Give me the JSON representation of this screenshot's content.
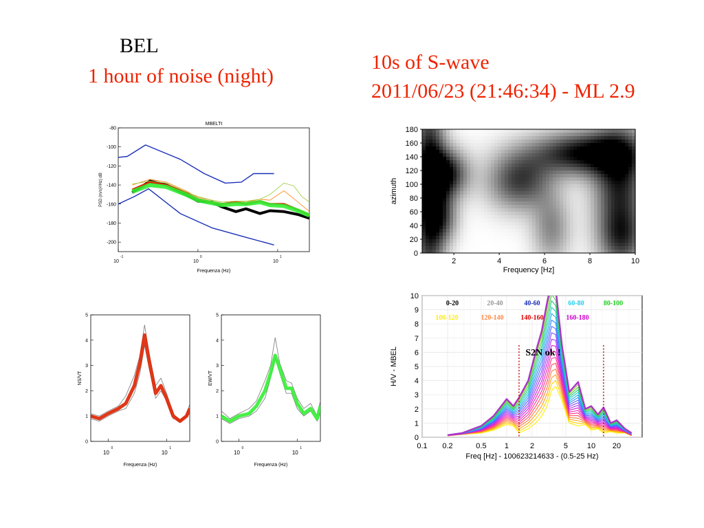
{
  "titles": {
    "station": "BEL",
    "noise": "1 hour of noise (night)",
    "swave": "10s of S-wave",
    "event": "2011/06/23 (21:46:34) - ML 2.9",
    "note": "S2N ok !"
  },
  "colors": {
    "red_title": "#ee2200",
    "black": "#000000",
    "blue": "#1a2fb8",
    "green": "#33ee33",
    "red": "#dd2200",
    "grey": "#777777",
    "dotted": "#cc0000"
  },
  "chart_data": [
    {
      "id": "psd",
      "type": "line",
      "title": "MBELTt",
      "xlabel": "Frequenza (Hz)",
      "ylabel": "PSD (m/s)²/Hz) dB",
      "xscale": "log",
      "xlim": [
        0.1,
        25
      ],
      "ylim": [
        -210,
        -80
      ],
      "yticks": [
        -80,
        -100,
        -120,
        -140,
        -160,
        -180,
        -200
      ],
      "xticks": [
        {
          "base": "10",
          "exp": "-1"
        },
        {
          "base": "10",
          "exp": "0"
        },
        {
          "base": "10",
          "exp": "1"
        }
      ],
      "series": [
        {
          "color": "#1a2fb8",
          "x": [
            0.1,
            0.13,
            0.22,
            0.6,
            1.2,
            2.2,
            3.5,
            5,
            9
          ],
          "y": [
            -111,
            -110,
            -98,
            -113,
            -128,
            -138,
            -137,
            -128,
            -128
          ]
        },
        {
          "color": "#1a2fb8",
          "x": [
            0.1,
            0.16,
            0.24,
            0.6,
            1.5,
            4,
            9
          ],
          "y": [
            -160,
            -152,
            -144,
            -170,
            -185,
            -195,
            -203
          ]
        },
        {
          "color": "#000000",
          "x": [
            0.15,
            0.25,
            0.4,
            0.7,
            1,
            1.5,
            2,
            3,
            4,
            6,
            8,
            12,
            18,
            25
          ],
          "y": [
            -148,
            -136,
            -140,
            -150,
            -157,
            -158,
            -163,
            -168,
            -165,
            -170,
            -167,
            -168,
            -171,
            -175
          ]
        },
        {
          "color": "#dd2200",
          "x": [
            0.15,
            0.25,
            0.4,
            0.7,
            1,
            1.5,
            2,
            3,
            4,
            6,
            8,
            12,
            18,
            25
          ],
          "y": [
            -145,
            -137,
            -140,
            -148,
            -155,
            -158,
            -160,
            -158,
            -160,
            -157,
            -160,
            -160,
            -166,
            -172
          ]
        },
        {
          "color": "#ff7a00",
          "x": [
            0.15,
            0.25,
            0.4,
            0.7,
            1,
            1.5,
            2,
            3,
            4,
            6,
            8,
            12,
            18,
            25
          ],
          "y": [
            -140,
            -134,
            -137,
            -146,
            -153,
            -156,
            -158,
            -157,
            -158,
            -155,
            -156,
            -146,
            -158,
            -168
          ]
        },
        {
          "color": "#99cc33",
          "x": [
            0.15,
            0.25,
            0.4,
            0.7,
            1,
            1.5,
            2,
            3,
            4,
            6,
            8,
            12,
            16,
            20,
            25
          ],
          "y": [
            -139,
            -136,
            -138,
            -147,
            -152,
            -156,
            -158,
            -157,
            -157,
            -155,
            -150,
            -138,
            -141,
            -152,
            -158
          ]
        },
        {
          "color": "#33ee33",
          "x": [
            0.15,
            0.25,
            0.4,
            0.7,
            1,
            1.5,
            2,
            3,
            4,
            6,
            8,
            12,
            18,
            25
          ],
          "y": [
            -147,
            -140,
            -142,
            -150,
            -156,
            -159,
            -161,
            -160,
            -160,
            -158,
            -161,
            -162,
            -167,
            -172
          ]
        }
      ]
    },
    {
      "id": "hv-ns",
      "type": "line",
      "xlabel": "Frequenza (Hz)",
      "ylabel": "NS/VT",
      "xscale": "log",
      "xlim": [
        0.5,
        25
      ],
      "ylim": [
        0,
        5
      ],
      "yticks": [
        0,
        1,
        2,
        3,
        4,
        5
      ],
      "xticks": [
        {
          "base": "10",
          "exp": "0"
        },
        {
          "base": "10",
          "exp": "1"
        }
      ],
      "series": [
        {
          "color": "#777777",
          "x": [
            0.5,
            0.7,
            1,
            1.5,
            2,
            2.8,
            3.5,
            4.2,
            5,
            6.5,
            8,
            10,
            13,
            17,
            22,
            25
          ],
          "y": [
            1.1,
            1.0,
            1.2,
            1.4,
            1.8,
            2.6,
            3.4,
            4.6,
            3.5,
            2.2,
            2.5,
            1.9,
            1.1,
            0.8,
            1.0,
            1.5
          ]
        },
        {
          "color": "#777777",
          "x": [
            0.5,
            0.7,
            1,
            1.5,
            2,
            2.8,
            3.5,
            4.2,
            5,
            6.5,
            8,
            10,
            13,
            17,
            22,
            25
          ],
          "y": [
            0.9,
            0.8,
            1.0,
            1.2,
            1.3,
            1.9,
            2.7,
            3.8,
            2.9,
            1.7,
            2.0,
            1.6,
            0.9,
            0.8,
            1.0,
            1.1
          ]
        },
        {
          "color": "#dd2200",
          "x": [
            0.5,
            0.7,
            1,
            1.5,
            2,
            2.8,
            3.5,
            4.2,
            5,
            6.5,
            8,
            10,
            13,
            17,
            22,
            25
          ],
          "y": [
            1.0,
            0.9,
            1.1,
            1.3,
            1.5,
            2.2,
            3.1,
            4.2,
            3.2,
            1.9,
            2.2,
            1.7,
            1.0,
            0.8,
            1.0,
            1.3
          ]
        }
      ]
    },
    {
      "id": "hv-ew",
      "type": "line",
      "xlabel": "Frequenza (Hz)",
      "ylabel": "EW/VT",
      "xscale": "log",
      "xlim": [
        0.5,
        25
      ],
      "ylim": [
        0,
        5
      ],
      "yticks": [
        0,
        1,
        2,
        3,
        4,
        5
      ],
      "xticks": [
        {
          "base": "10",
          "exp": "0"
        },
        {
          "base": "10",
          "exp": "1"
        }
      ],
      "series": [
        {
          "color": "#777777",
          "x": [
            0.5,
            0.7,
            1,
            1.5,
            2,
            2.8,
            3.5,
            4.2,
            5,
            6.5,
            8,
            10,
            13,
            17,
            22,
            25
          ],
          "y": [
            1.2,
            0.9,
            1.1,
            1.3,
            1.6,
            2.4,
            3.0,
            4.1,
            3.1,
            2.4,
            2.3,
            1.7,
            1.3,
            1.5,
            1.0,
            1.6
          ]
        },
        {
          "color": "#777777",
          "x": [
            0.5,
            0.7,
            1,
            1.5,
            2,
            2.8,
            3.5,
            4.2,
            5,
            6.5,
            8,
            10,
            13,
            17,
            22,
            25
          ],
          "y": [
            0.9,
            0.7,
            0.9,
            1.0,
            1.2,
            1.7,
            2.5,
            3.3,
            2.7,
            1.9,
            1.9,
            1.3,
            1.0,
            1.2,
            0.8,
            1.2
          ]
        },
        {
          "color": "#33ee33",
          "x": [
            0.5,
            0.7,
            1,
            1.5,
            2,
            2.8,
            3.5,
            4.2,
            5,
            6.5,
            8,
            10,
            13,
            17,
            22,
            25
          ],
          "y": [
            1.0,
            0.8,
            1.0,
            1.1,
            1.4,
            2.0,
            2.7,
            3.4,
            2.9,
            2.1,
            2.1,
            1.5,
            1.1,
            1.3,
            0.9,
            1.4
          ]
        }
      ]
    },
    {
      "id": "azimuth",
      "type": "heatmap",
      "xlabel": "Frequency [Hz]",
      "ylabel": "azimuth",
      "xlim": [
        0.6,
        10
      ],
      "ylim": [
        0,
        180
      ],
      "xticks": [
        2,
        4,
        6,
        8,
        10
      ],
      "yticks": [
        0,
        20,
        40,
        60,
        80,
        100,
        120,
        140,
        160,
        180
      ],
      "colormap": "white-black",
      "blobs": [
        {
          "x": 0.9,
          "y": 90,
          "sx": 0.5,
          "sy": 110,
          "v": 1.0
        },
        {
          "x": 1.6,
          "y": 115,
          "sx": 0.7,
          "sy": 25,
          "v": 0.95
        },
        {
          "x": 1.5,
          "y": 50,
          "sx": 0.5,
          "sy": 25,
          "v": 0.5
        },
        {
          "x": 4.9,
          "y": 105,
          "sx": 1.0,
          "sy": 30,
          "v": 0.75
        },
        {
          "x": 7.8,
          "y": 145,
          "sx": 1.6,
          "sy": 22,
          "v": 1.0
        },
        {
          "x": 9.3,
          "y": 100,
          "sx": 0.8,
          "sy": 60,
          "v": 0.85
        },
        {
          "x": 6.3,
          "y": 35,
          "sx": 0.6,
          "sy": 35,
          "v": 0.45
        },
        {
          "x": 9.4,
          "y": 20,
          "sx": 0.7,
          "sy": 30,
          "v": 0.55
        }
      ]
    },
    {
      "id": "hv-azimuth",
      "type": "line",
      "xlabel": "Freq [Hz] - 100623214633 - (0.5-25 Hz)",
      "ylabel": "H/V - MBEL",
      "xscale": "log",
      "xlim": [
        0.1,
        40
      ],
      "ylim": [
        0,
        10
      ],
      "yticks": [
        0,
        1,
        2,
        3,
        4,
        5,
        6,
        7,
        8,
        9,
        10
      ],
      "xticks": [
        "0.1",
        "0.2",
        "0.5",
        "1",
        "2",
        "5",
        "10",
        "20"
      ],
      "vlines": [
        1.4,
        14
      ],
      "legend": [
        {
          "label": "0-20",
          "color": "#000000"
        },
        {
          "label": "20-40",
          "color": "#999999"
        },
        {
          "label": "40-60",
          "color": "#1a2fb8"
        },
        {
          "label": "60-80",
          "color": "#22ccee"
        },
        {
          "label": "80-100",
          "color": "#22cc22"
        },
        {
          "label": "100-120",
          "color": "#ffee00"
        },
        {
          "label": "120-140",
          "color": "#ff8844"
        },
        {
          "label": "140-160",
          "color": "#dd0000"
        },
        {
          "label": "160-180",
          "color": "#cc00cc"
        }
      ],
      "x": [
        0.2,
        0.3,
        0.5,
        0.7,
        1.0,
        1.2,
        1.4,
        1.8,
        2.2,
        2.6,
        3.0,
        3.4,
        3.8,
        4.5,
        5.5,
        7.0,
        8.5,
        10,
        12,
        14,
        17,
        20,
        25,
        30
      ],
      "low": [
        0.1,
        0.2,
        0.3,
        0.5,
        0.9,
        0.8,
        0.3,
        0.6,
        1.0,
        1.5,
        2.2,
        3.3,
        3.6,
        2.6,
        1.0,
        0.8,
        0.9,
        0.5,
        0.6,
        0.3,
        0.4,
        0.3,
        0.3,
        0.1
      ],
      "high": [
        0.15,
        0.3,
        0.8,
        1.5,
        2.7,
        2.2,
        2.8,
        4.0,
        6.0,
        7.5,
        9.5,
        11,
        10.5,
        6.5,
        3.2,
        3.9,
        2.0,
        2.2,
        1.6,
        2.1,
        1.0,
        1.2,
        0.6,
        0.3
      ],
      "ncurves": 18
    }
  ]
}
